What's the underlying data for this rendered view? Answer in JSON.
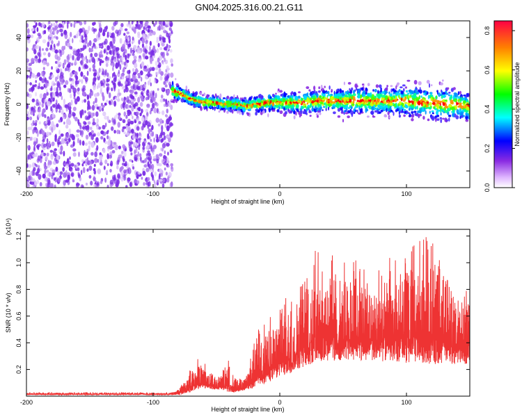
{
  "chart_data": [
    {
      "type": "heatmap",
      "title": "GN04.2025.316.00.21.G11",
      "xlabel": "Height of straight line (km)",
      "ylabel": "Frequency (Hz)",
      "xlim": [
        -200,
        150
      ],
      "ylim": [
        -50,
        50
      ],
      "xticks": [
        {
          "value": -200,
          "label": "-200"
        },
        {
          "value": -100,
          "label": "-100"
        },
        {
          "value": 0,
          "label": "0"
        },
        {
          "value": 100,
          "label": "100"
        }
      ],
      "yticks": [
        {
          "value": -40,
          "label": "-40"
        },
        {
          "value": -20,
          "label": "-20"
        },
        {
          "value": 0,
          "label": "0"
        },
        {
          "value": 20,
          "label": "20"
        },
        {
          "value": 40,
          "label": "40"
        }
      ],
      "noise_region": [
        -200,
        -85
      ],
      "signal_track": {
        "x": [
          -85,
          -80,
          -75,
          -70,
          -65,
          -60,
          -55,
          -50,
          -45,
          -40,
          -35,
          -30,
          -25,
          -20,
          -15,
          -10,
          -5,
          0,
          10,
          20,
          30,
          40,
          50,
          60,
          70,
          80,
          90,
          100,
          110,
          120,
          130,
          140,
          150
        ],
        "center_hz": [
          8,
          7,
          5,
          3,
          2,
          1,
          1,
          1,
          0,
          0,
          0,
          -1,
          -1,
          0,
          0,
          1,
          1,
          1,
          1,
          1,
          2,
          2,
          2,
          2,
          2,
          2,
          2,
          2,
          1,
          1,
          0,
          0,
          -2
        ],
        "half_width_hz": [
          6,
          5,
          4,
          4,
          4,
          4,
          4,
          4,
          4,
          4,
          4,
          4,
          4,
          5,
          5,
          5,
          5,
          6,
          6,
          7,
          7,
          7,
          8,
          8,
          8,
          8,
          8,
          9,
          9,
          10,
          10,
          9,
          8
        ]
      },
      "colorbar": {
        "label": "Normalized spectral amplitude",
        "range": [
          0,
          0.85
        ],
        "ticks": [
          {
            "value": 0.0,
            "label": "0.0"
          },
          {
            "value": 0.2,
            "label": "0.2"
          },
          {
            "value": 0.4,
            "label": "0.4"
          },
          {
            "value": 0.6,
            "label": "0.6"
          },
          {
            "value": 0.8,
            "label": "0.8"
          }
        ],
        "colors": [
          "#ffffff",
          "#8a2be2",
          "#0000ff",
          "#00ffff",
          "#00ff00",
          "#ffff00",
          "#ff8000",
          "#ff0000"
        ]
      }
    },
    {
      "type": "area",
      "xlabel": "Height of straight line (km)",
      "ylabel": "SNR (10 * v/v)",
      "y_multiplier": "(x10⁴)",
      "xlim": [
        -200,
        150
      ],
      "ylim": [
        0,
        1.25
      ],
      "xticks": [
        {
          "value": -200,
          "label": "-200"
        },
        {
          "value": -100,
          "label": "-100"
        },
        {
          "value": 0,
          "label": "0"
        },
        {
          "value": 100,
          "label": "100"
        }
      ],
      "yticks": [
        {
          "value": 0.2,
          "label": "0.2"
        },
        {
          "value": 0.4,
          "label": "0.4"
        },
        {
          "value": 0.6,
          "label": "0.6"
        },
        {
          "value": 0.8,
          "label": "0.8"
        },
        {
          "value": 1.0,
          "label": "1.0"
        },
        {
          "value": 1.2,
          "label": "1.2"
        }
      ],
      "color": "#ee3333",
      "envelope": {
        "x": [
          -200,
          -100,
          -85,
          -80,
          -75,
          -70,
          -65,
          -60,
          -55,
          -50,
          -45,
          -40,
          -35,
          -30,
          -25,
          -20,
          -15,
          -10,
          -5,
          0,
          5,
          10,
          15,
          20,
          25,
          30,
          35,
          40,
          45,
          50,
          60,
          70,
          80,
          90,
          100,
          110,
          120,
          130,
          140,
          150
        ],
        "min": [
          0.01,
          0.01,
          0.01,
          0.01,
          0.02,
          0.03,
          0.05,
          0.06,
          0.05,
          0.05,
          0.04,
          0.03,
          0.03,
          0.04,
          0.05,
          0.06,
          0.08,
          0.1,
          0.12,
          0.14,
          0.16,
          0.18,
          0.2,
          0.22,
          0.24,
          0.26,
          0.26,
          0.26,
          0.26,
          0.27,
          0.27,
          0.27,
          0.26,
          0.26,
          0.25,
          0.25,
          0.24,
          0.24,
          0.24,
          0.24
        ],
        "max": [
          0.03,
          0.03,
          0.03,
          0.05,
          0.12,
          0.22,
          0.28,
          0.27,
          0.2,
          0.14,
          0.2,
          0.28,
          0.16,
          0.12,
          0.2,
          0.42,
          0.55,
          0.58,
          0.62,
          0.68,
          0.74,
          0.8,
          0.86,
          0.96,
          1.05,
          1.12,
          1.1,
          1.06,
          1.12,
          1.0,
          1.05,
          1.0,
          0.98,
          1.08,
          1.12,
          1.16,
          1.22,
          1.1,
          0.85,
          0.8
        ]
      }
    }
  ]
}
